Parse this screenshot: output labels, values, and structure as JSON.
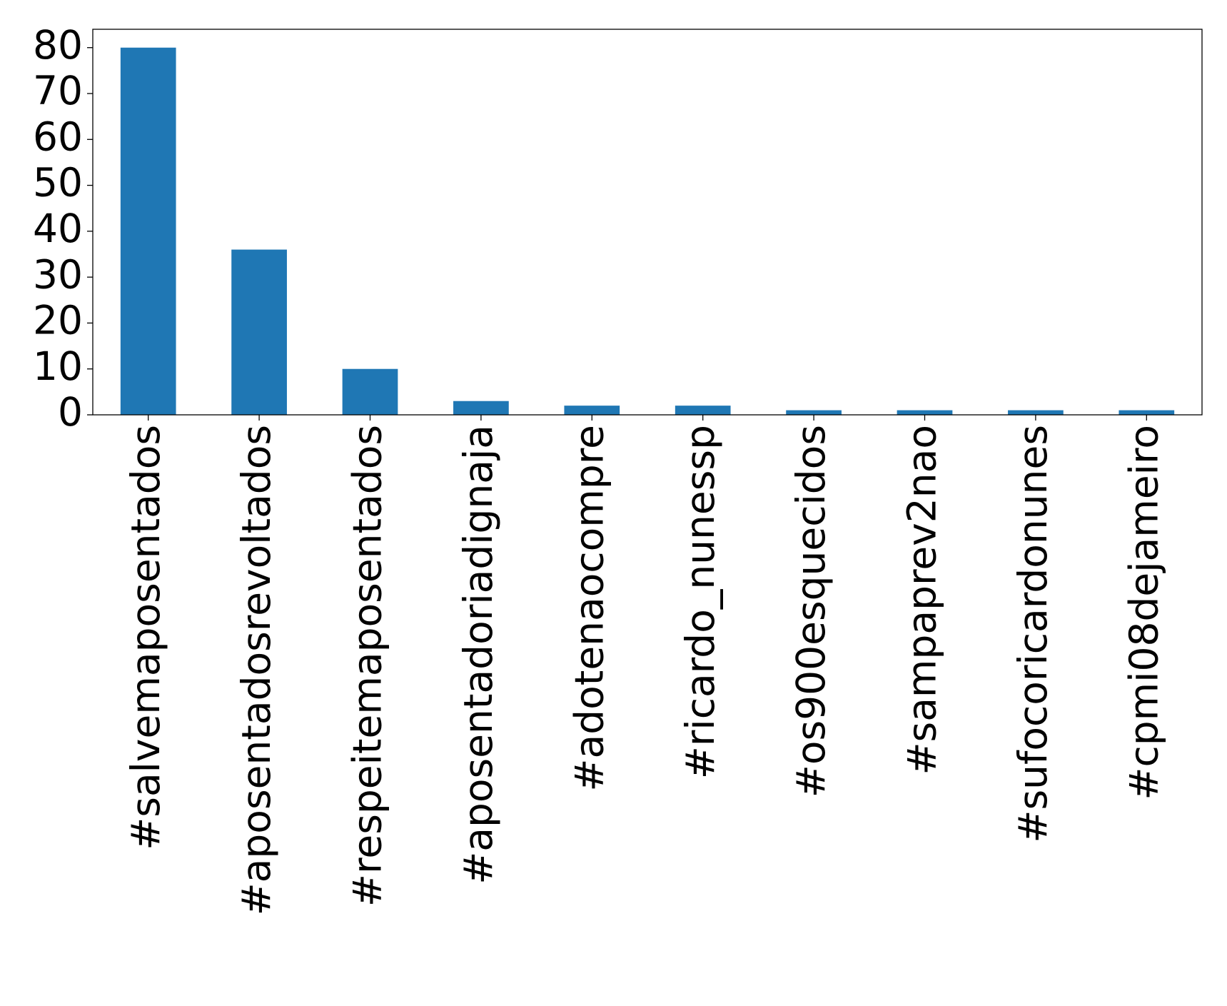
{
  "chart_data": {
    "type": "bar",
    "categories": [
      "#salvemaposentados",
      "#aposentadosrevoltados",
      "#respeitemaposentados",
      "#aposentadoriadignaja",
      "#adotenaocompre",
      "#ricardo_nunessp",
      "#os900esquecidos",
      "#sampaprev2nao",
      "#sufocoricardonunes",
      "#cpmi08dejameiro"
    ],
    "values": [
      80,
      36,
      10,
      3,
      2,
      2,
      1,
      1,
      1,
      1
    ],
    "color": "#1f77b4",
    "ylim": [
      0,
      84
    ],
    "yticks": [
      0,
      10,
      20,
      30,
      40,
      50,
      60,
      70,
      80
    ],
    "grid": false
  }
}
